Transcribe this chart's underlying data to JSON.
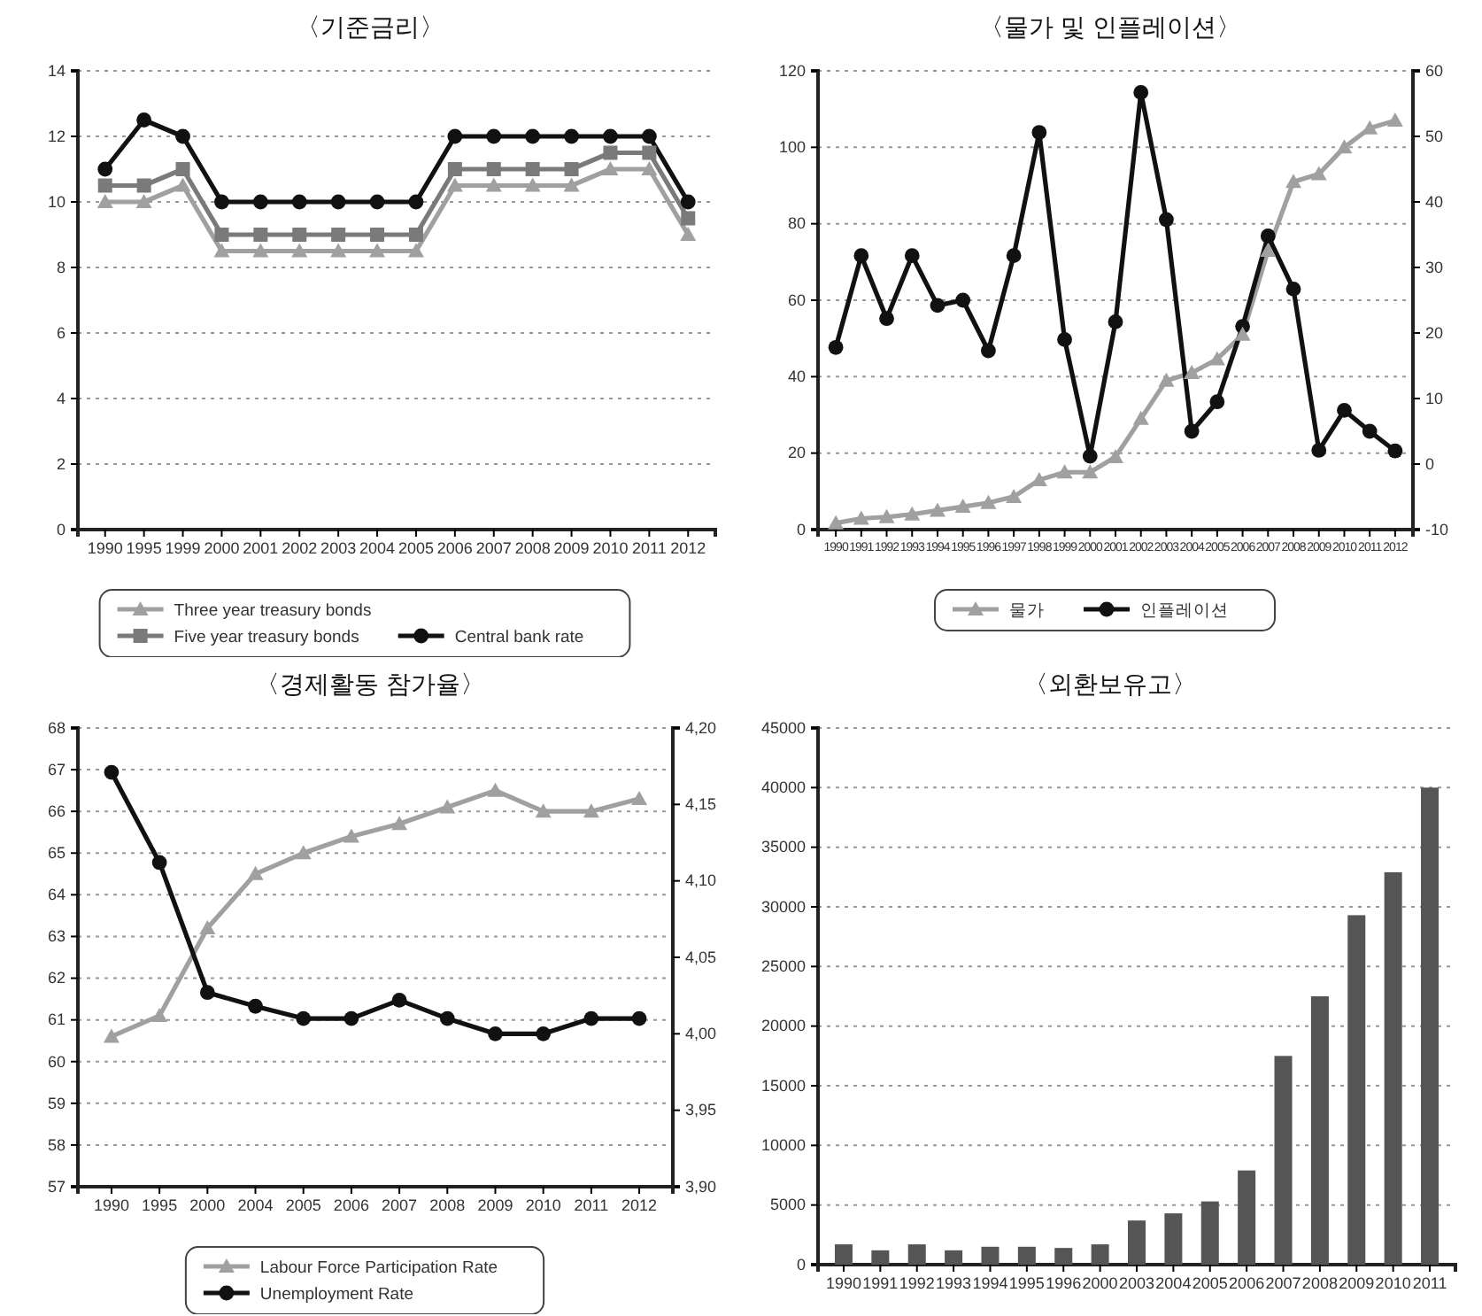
{
  "chart_data": [
    {
      "type": "line",
      "title": "〈기준금리〉",
      "categories": [
        "1990",
        "1995",
        "1999",
        "2000",
        "2001",
        "2002",
        "2003",
        "2004",
        "2005",
        "2006",
        "2007",
        "2008",
        "2009",
        "2010",
        "2011",
        "2012"
      ],
      "ylim": [
        0,
        14
      ],
      "yticks": [
        0,
        2,
        4,
        6,
        8,
        10,
        12,
        14
      ],
      "grid": "y",
      "legend": "bottom",
      "series": [
        {
          "name": "Three year treasury bonds",
          "color": "#a0a0a0",
          "marker": "triangle",
          "values": [
            10,
            10,
            10.5,
            8.5,
            8.5,
            8.5,
            8.5,
            8.5,
            8.5,
            10.5,
            10.5,
            10.5,
            10.5,
            11,
            11,
            9
          ]
        },
        {
          "name": "Five year treasury bonds",
          "color": "#7a7a7a",
          "marker": "square",
          "values": [
            10.5,
            10.5,
            11,
            9,
            9,
            9,
            9,
            9,
            9,
            11,
            11,
            11,
            11,
            11.5,
            11.5,
            9.5
          ]
        },
        {
          "name": "Central bank rate",
          "color": "#111111",
          "marker": "circle",
          "values": [
            11,
            12.5,
            12,
            10,
            10,
            10,
            10,
            10,
            10,
            12,
            12,
            12,
            12,
            12,
            12,
            10
          ]
        }
      ]
    },
    {
      "type": "line",
      "title": "〈물가 및 인플레이션〉",
      "categories": [
        "1990",
        "1991",
        "1992",
        "1993",
        "1994",
        "1995",
        "1996",
        "1997",
        "1998",
        "1999",
        "2000",
        "2001",
        "2002",
        "2003",
        "2004",
        "2005",
        "2006",
        "2007",
        "2008",
        "2009",
        "2010",
        "2011",
        "2012"
      ],
      "ylim": [
        0,
        120
      ],
      "yticks": [
        0,
        20,
        40,
        60,
        80,
        100,
        120
      ],
      "y2lim": [
        -10,
        60
      ],
      "y2ticks": [
        -10,
        0,
        10,
        20,
        30,
        40,
        50,
        60
      ],
      "grid": "y",
      "legend": "bottom",
      "series": [
        {
          "name": "물가",
          "color": "#a0a0a0",
          "marker": "triangle",
          "values": [
            1.7,
            2.9,
            3.3,
            4,
            5,
            6,
            7,
            8.6,
            13,
            15,
            15,
            19,
            29,
            39,
            41,
            44.6,
            51,
            73,
            91,
            93,
            100,
            105,
            107
          ]
        },
        {
          "name": "인플레이션",
          "color": "#111111",
          "marker": "circle",
          "axis": "y2",
          "values": [
            17.8,
            31.8,
            22.2,
            31.8,
            24.2,
            25,
            17.3,
            31.8,
            50.6,
            19,
            1.2,
            21.7,
            56.7,
            37.3,
            5,
            9.5,
            21,
            34.8,
            26.7,
            2.1,
            8.2,
            5,
            2
          ]
        }
      ]
    },
    {
      "type": "line",
      "title": "〈경제활동 참가율〉",
      "categories": [
        "1990",
        "1995",
        "2000",
        "2004",
        "2005",
        "2006",
        "2007",
        "2008",
        "2009",
        "2010",
        "2011",
        "2012"
      ],
      "ylim": [
        57,
        68
      ],
      "yticks": [
        57,
        58,
        59,
        60,
        61,
        62,
        63,
        64,
        65,
        66,
        67,
        68
      ],
      "y2lim": [
        3.9,
        4.2
      ],
      "y2ticks": [
        {
          "value": 3.9,
          "label": "3,90"
        },
        {
          "value": 3.95,
          "label": "3,95"
        },
        {
          "value": 4.0,
          "label": "4,00"
        },
        {
          "value": 4.05,
          "label": "4,05"
        },
        {
          "value": 4.1,
          "label": "4,10"
        },
        {
          "value": 4.15,
          "label": "4,15"
        },
        {
          "value": 4.2,
          "label": "4,20"
        }
      ],
      "grid": "y",
      "legend": "bottom",
      "series": [
        {
          "name": "Labour Force Participation Rate",
          "color": "#a0a0a0",
          "marker": "triangle",
          "values": [
            60.6,
            61.1,
            63.2,
            64.5,
            65,
            65.4,
            65.7,
            66.1,
            66.5,
            66,
            66,
            66.3
          ]
        },
        {
          "name": "Unemployment Rate",
          "color": "#111111",
          "marker": "circle",
          "axis": "y2",
          "values": [
            4.171,
            4.112,
            4.027,
            4.018,
            4.01,
            4.01,
            4.022,
            4.01,
            4.0,
            4.0,
            4.01,
            4.01
          ]
        }
      ]
    },
    {
      "type": "bar",
      "title": "〈외환보유고〉",
      "categories": [
        "1990",
        "1991",
        "1992",
        "1993",
        "1994",
        "1995",
        "1996",
        "2000",
        "2003",
        "2004",
        "2005",
        "2006",
        "2007",
        "2008",
        "2009",
        "2010",
        "2011"
      ],
      "ylim": [
        0,
        45000
      ],
      "yticks": [
        0,
        5000,
        10000,
        15000,
        20000,
        25000,
        30000,
        35000,
        40000,
        45000
      ],
      "grid": "y",
      "color": "#555555",
      "values": [
        1700,
        1200,
        1700,
        1200,
        1500,
        1500,
        1400,
        1700,
        3700,
        4300,
        5300,
        7900,
        17500,
        22500,
        29300,
        32900,
        40000
      ]
    }
  ]
}
